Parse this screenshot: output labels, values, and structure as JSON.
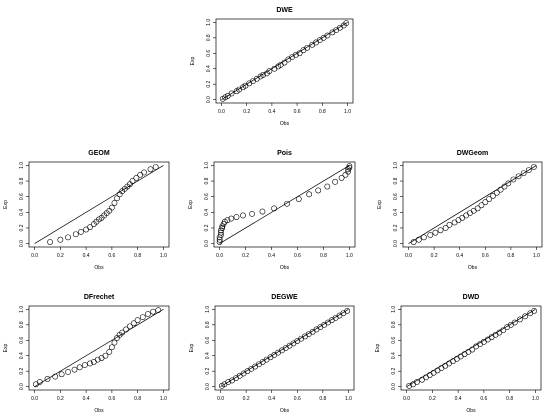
{
  "chart_data": [
    {
      "type": "scatter",
      "title": "DWE",
      "xlabel": "Obs",
      "ylabel": "Exp",
      "xlim": [
        0,
        1
      ],
      "ylim": [
        0,
        1
      ],
      "xticks": [
        "0.0",
        "0.2",
        "0.4",
        "0.6",
        "0.8",
        "1.0"
      ],
      "yticks": [
        "0.0",
        "0.2",
        "0.4",
        "0.6",
        "0.8",
        "1.0"
      ],
      "grid": false,
      "reference_line": {
        "from": [
          0,
          0
        ],
        "to": [
          1,
          1
        ]
      },
      "points": [
        [
          0.01,
          0.01
        ],
        [
          0.03,
          0.03
        ],
        [
          0.05,
          0.05
        ],
        [
          0.08,
          0.08
        ],
        [
          0.12,
          0.11
        ],
        [
          0.14,
          0.13
        ],
        [
          0.17,
          0.16
        ],
        [
          0.19,
          0.18
        ],
        [
          0.22,
          0.21
        ],
        [
          0.25,
          0.24
        ],
        [
          0.28,
          0.27
        ],
        [
          0.31,
          0.3
        ],
        [
          0.33,
          0.32
        ],
        [
          0.36,
          0.34
        ],
        [
          0.38,
          0.37
        ],
        [
          0.42,
          0.4
        ],
        [
          0.45,
          0.43
        ],
        [
          0.47,
          0.45
        ],
        [
          0.5,
          0.48
        ],
        [
          0.53,
          0.52
        ],
        [
          0.56,
          0.55
        ],
        [
          0.59,
          0.58
        ],
        [
          0.62,
          0.6
        ],
        [
          0.65,
          0.64
        ],
        [
          0.68,
          0.67
        ],
        [
          0.72,
          0.71
        ],
        [
          0.75,
          0.74
        ],
        [
          0.78,
          0.77
        ],
        [
          0.81,
          0.8
        ],
        [
          0.84,
          0.83
        ],
        [
          0.88,
          0.87
        ],
        [
          0.91,
          0.9
        ],
        [
          0.94,
          0.93
        ],
        [
          0.97,
          0.96
        ],
        [
          0.99,
          0.99
        ]
      ]
    },
    {
      "type": "scatter",
      "title": "GEOM",
      "xlabel": "Obs",
      "ylabel": "Exp",
      "xlim": [
        0,
        1
      ],
      "ylim": [
        0,
        1
      ],
      "xticks": [
        "0.0",
        "0.2",
        "0.4",
        "0.6",
        "0.8",
        "1.0"
      ],
      "yticks": [
        "0.0",
        "0.2",
        "0.4",
        "0.6",
        "0.8",
        "1.0"
      ],
      "grid": false,
      "reference_line": {
        "from": [
          0,
          0
        ],
        "to": [
          1,
          1
        ]
      },
      "points": [
        [
          0.12,
          0.02
        ],
        [
          0.2,
          0.05
        ],
        [
          0.26,
          0.08
        ],
        [
          0.32,
          0.12
        ],
        [
          0.36,
          0.15
        ],
        [
          0.4,
          0.18
        ],
        [
          0.43,
          0.21
        ],
        [
          0.46,
          0.25
        ],
        [
          0.48,
          0.28
        ],
        [
          0.5,
          0.31
        ],
        [
          0.52,
          0.33
        ],
        [
          0.54,
          0.36
        ],
        [
          0.56,
          0.39
        ],
        [
          0.58,
          0.42
        ],
        [
          0.6,
          0.46
        ],
        [
          0.62,
          0.52
        ],
        [
          0.64,
          0.58
        ],
        [
          0.66,
          0.63
        ],
        [
          0.68,
          0.67
        ],
        [
          0.7,
          0.7
        ],
        [
          0.72,
          0.73
        ],
        [
          0.74,
          0.76
        ],
        [
          0.76,
          0.8
        ],
        [
          0.79,
          0.84
        ],
        [
          0.82,
          0.88
        ],
        [
          0.85,
          0.91
        ],
        [
          0.9,
          0.95
        ],
        [
          0.94,
          0.98
        ]
      ]
    },
    {
      "type": "scatter",
      "title": "Pois",
      "xlabel": "Obs",
      "ylabel": "Exp",
      "xlim": [
        0,
        1
      ],
      "ylim": [
        0,
        1
      ],
      "xticks": [
        "0.0",
        "0.2",
        "0.4",
        "0.6",
        "0.8",
        "1.0"
      ],
      "yticks": [
        "0.0",
        "0.2",
        "0.4",
        "0.6",
        "0.8",
        "1.0"
      ],
      "grid": false,
      "reference_line": {
        "from": [
          0,
          0
        ],
        "to": [
          1,
          1
        ]
      },
      "points": [
        [
          0.0,
          0.02
        ],
        [
          0.0,
          0.05
        ],
        [
          0.0,
          0.08
        ],
        [
          0.01,
          0.11
        ],
        [
          0.01,
          0.14
        ],
        [
          0.01,
          0.17
        ],
        [
          0.02,
          0.2
        ],
        [
          0.02,
          0.22
        ],
        [
          0.03,
          0.25
        ],
        [
          0.04,
          0.28
        ],
        [
          0.06,
          0.3
        ],
        [
          0.09,
          0.32
        ],
        [
          0.13,
          0.34
        ],
        [
          0.18,
          0.36
        ],
        [
          0.25,
          0.38
        ],
        [
          0.33,
          0.41
        ],
        [
          0.42,
          0.45
        ],
        [
          0.52,
          0.51
        ],
        [
          0.61,
          0.57
        ],
        [
          0.69,
          0.63
        ],
        [
          0.76,
          0.68
        ],
        [
          0.83,
          0.73
        ],
        [
          0.89,
          0.79
        ],
        [
          0.94,
          0.84
        ],
        [
          0.97,
          0.88
        ],
        [
          0.99,
          0.92
        ],
        [
          0.99,
          0.95
        ],
        [
          1.0,
          0.97
        ],
        [
          1.0,
          0.99
        ]
      ]
    },
    {
      "type": "scatter",
      "title": "DWGeom",
      "xlabel": "Obs",
      "ylabel": "Exp",
      "xlim": [
        0,
        1
      ],
      "ylim": [
        0,
        1
      ],
      "xticks": [
        "0.0",
        "0.2",
        "0.4",
        "0.6",
        "0.8",
        "1.0"
      ],
      "yticks": [
        "0.0",
        "0.2",
        "0.4",
        "0.6",
        "0.8",
        "1.0"
      ],
      "grid": false,
      "reference_line": {
        "from": [
          0,
          0
        ],
        "to": [
          1,
          1
        ]
      },
      "points": [
        [
          0.04,
          0.02
        ],
        [
          0.08,
          0.05
        ],
        [
          0.12,
          0.08
        ],
        [
          0.17,
          0.11
        ],
        [
          0.21,
          0.14
        ],
        [
          0.25,
          0.17
        ],
        [
          0.29,
          0.2
        ],
        [
          0.32,
          0.24
        ],
        [
          0.36,
          0.27
        ],
        [
          0.39,
          0.3
        ],
        [
          0.42,
          0.33
        ],
        [
          0.45,
          0.36
        ],
        [
          0.48,
          0.39
        ],
        [
          0.51,
          0.42
        ],
        [
          0.54,
          0.45
        ],
        [
          0.57,
          0.49
        ],
        [
          0.6,
          0.53
        ],
        [
          0.63,
          0.57
        ],
        [
          0.66,
          0.61
        ],
        [
          0.69,
          0.65
        ],
        [
          0.72,
          0.69
        ],
        [
          0.75,
          0.73
        ],
        [
          0.78,
          0.77
        ],
        [
          0.82,
          0.82
        ],
        [
          0.86,
          0.86
        ],
        [
          0.9,
          0.9
        ],
        [
          0.94,
          0.94
        ],
        [
          0.98,
          0.98
        ]
      ]
    },
    {
      "type": "scatter",
      "title": "DFrechet",
      "xlabel": "Obs",
      "ylabel": "Exp",
      "xlim": [
        0,
        1
      ],
      "ylim": [
        0,
        1
      ],
      "xticks": [
        "0.0",
        "0.2",
        "0.4",
        "0.6",
        "0.8",
        "1.0"
      ],
      "yticks": [
        "0.0",
        "0.2",
        "0.4",
        "0.6",
        "0.8",
        "1.0"
      ],
      "grid": false,
      "reference_line": {
        "from": [
          0,
          0
        ],
        "to": [
          1,
          1
        ]
      },
      "points": [
        [
          0.01,
          0.03
        ],
        [
          0.04,
          0.06
        ],
        [
          0.1,
          0.1
        ],
        [
          0.16,
          0.13
        ],
        [
          0.21,
          0.16
        ],
        [
          0.26,
          0.19
        ],
        [
          0.31,
          0.22
        ],
        [
          0.35,
          0.25
        ],
        [
          0.39,
          0.28
        ],
        [
          0.43,
          0.3
        ],
        [
          0.46,
          0.32
        ],
        [
          0.49,
          0.35
        ],
        [
          0.52,
          0.37
        ],
        [
          0.55,
          0.4
        ],
        [
          0.58,
          0.45
        ],
        [
          0.6,
          0.51
        ],
        [
          0.62,
          0.57
        ],
        [
          0.64,
          0.63
        ],
        [
          0.66,
          0.67
        ],
        [
          0.68,
          0.7
        ],
        [
          0.71,
          0.74
        ],
        [
          0.74,
          0.78
        ],
        [
          0.77,
          0.82
        ],
        [
          0.8,
          0.86
        ],
        [
          0.84,
          0.9
        ],
        [
          0.88,
          0.94
        ],
        [
          0.92,
          0.97
        ],
        [
          0.96,
          0.99
        ]
      ]
    },
    {
      "type": "scatter",
      "title": "DEGWE",
      "xlabel": "Obs",
      "ylabel": "Exp",
      "xlim": [
        0,
        1
      ],
      "ylim": [
        0,
        1
      ],
      "xticks": [
        "0.0",
        "0.2",
        "0.4",
        "0.6",
        "0.8",
        "1.0"
      ],
      "yticks": [
        "0.0",
        "0.2",
        "0.4",
        "0.6",
        "0.8",
        "1.0"
      ],
      "grid": false,
      "reference_line": {
        "from": [
          0,
          0
        ],
        "to": [
          1,
          1
        ]
      },
      "points": [
        [
          0.01,
          0.01
        ],
        [
          0.03,
          0.03
        ],
        [
          0.06,
          0.06
        ],
        [
          0.09,
          0.08
        ],
        [
          0.12,
          0.11
        ],
        [
          0.15,
          0.14
        ],
        [
          0.18,
          0.17
        ],
        [
          0.21,
          0.2
        ],
        [
          0.24,
          0.23
        ],
        [
          0.27,
          0.26
        ],
        [
          0.3,
          0.29
        ],
        [
          0.33,
          0.32
        ],
        [
          0.36,
          0.35
        ],
        [
          0.39,
          0.38
        ],
        [
          0.42,
          0.41
        ],
        [
          0.45,
          0.44
        ],
        [
          0.48,
          0.47
        ],
        [
          0.51,
          0.5
        ],
        [
          0.54,
          0.53
        ],
        [
          0.57,
          0.56
        ],
        [
          0.6,
          0.59
        ],
        [
          0.63,
          0.62
        ],
        [
          0.66,
          0.65
        ],
        [
          0.69,
          0.68
        ],
        [
          0.72,
          0.71
        ],
        [
          0.75,
          0.74
        ],
        [
          0.78,
          0.77
        ],
        [
          0.81,
          0.8
        ],
        [
          0.84,
          0.83
        ],
        [
          0.87,
          0.86
        ],
        [
          0.9,
          0.89
        ],
        [
          0.93,
          0.92
        ],
        [
          0.96,
          0.95
        ],
        [
          0.99,
          0.98
        ]
      ]
    },
    {
      "type": "scatter",
      "title": "DWD",
      "xlabel": "Obs",
      "ylabel": "Exp",
      "xlim": [
        0,
        1
      ],
      "ylim": [
        0,
        1
      ],
      "xticks": [
        "0.0",
        "0.2",
        "0.4",
        "0.6",
        "0.8",
        "1.0"
      ],
      "yticks": [
        "0.0",
        "0.2",
        "0.4",
        "0.6",
        "0.8",
        "1.0"
      ],
      "grid": false,
      "reference_line": {
        "from": [
          0,
          0
        ],
        "to": [
          1,
          1
        ]
      },
      "points": [
        [
          0.02,
          0.01
        ],
        [
          0.05,
          0.03
        ],
        [
          0.08,
          0.06
        ],
        [
          0.12,
          0.09
        ],
        [
          0.15,
          0.12
        ],
        [
          0.18,
          0.15
        ],
        [
          0.21,
          0.18
        ],
        [
          0.24,
          0.21
        ],
        [
          0.27,
          0.24
        ],
        [
          0.3,
          0.27
        ],
        [
          0.33,
          0.3
        ],
        [
          0.36,
          0.33
        ],
        [
          0.39,
          0.36
        ],
        [
          0.42,
          0.39
        ],
        [
          0.45,
          0.42
        ],
        [
          0.48,
          0.45
        ],
        [
          0.51,
          0.48
        ],
        [
          0.54,
          0.52
        ],
        [
          0.57,
          0.55
        ],
        [
          0.6,
          0.58
        ],
        [
          0.63,
          0.61
        ],
        [
          0.66,
          0.64
        ],
        [
          0.69,
          0.67
        ],
        [
          0.72,
          0.7
        ],
        [
          0.75,
          0.73
        ],
        [
          0.78,
          0.77
        ],
        [
          0.81,
          0.8
        ],
        [
          0.84,
          0.83
        ],
        [
          0.88,
          0.87
        ],
        [
          0.92,
          0.91
        ],
        [
          0.96,
          0.95
        ],
        [
          0.99,
          0.98
        ]
      ]
    }
  ]
}
